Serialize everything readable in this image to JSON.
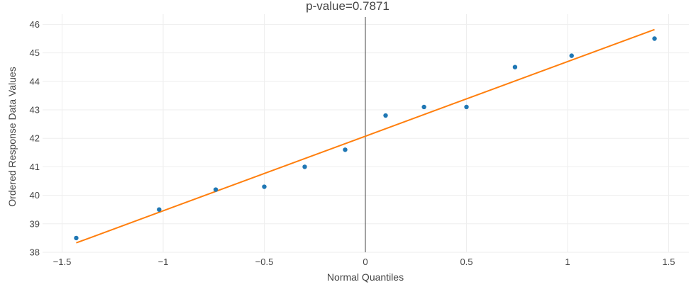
{
  "chart_data": {
    "type": "scatter",
    "title": "p-value=0.7871",
    "xlabel": "Normal Quantiles",
    "ylabel": "Ordered Response Data Values",
    "xlim": [
      -1.6,
      1.6
    ],
    "ylim": [
      38,
      46.2
    ],
    "xticks": [
      -1.5,
      -1,
      -0.5,
      0,
      0.5,
      1,
      1.5
    ],
    "xtick_labels": [
      "−1.5",
      "−1",
      "−0.5",
      "0",
      "0.5",
      "1",
      "1.5"
    ],
    "yticks": [
      38,
      39,
      40,
      41,
      42,
      43,
      44,
      45,
      46
    ],
    "ytick_labels": [
      "38",
      "39",
      "40",
      "41",
      "42",
      "43",
      "44",
      "45",
      "46"
    ],
    "grid": true,
    "series": [
      {
        "type": "scatter",
        "color": "#1f77b4",
        "x": [
          -1.43,
          -1.02,
          -0.74,
          -0.5,
          -0.3,
          -0.1,
          0.1,
          0.29,
          0.5,
          0.74,
          1.02,
          1.43
        ],
        "y": [
          38.5,
          39.5,
          40.2,
          40.3,
          41.0,
          41.6,
          42.8,
          43.1,
          43.1,
          44.5,
          44.9,
          45.5
        ]
      },
      {
        "type": "line",
        "color": "#ff7f0e",
        "x": [
          -1.43,
          1.43
        ],
        "y": [
          38.33,
          45.82
        ]
      }
    ],
    "zero_line_color": "#444444"
  }
}
